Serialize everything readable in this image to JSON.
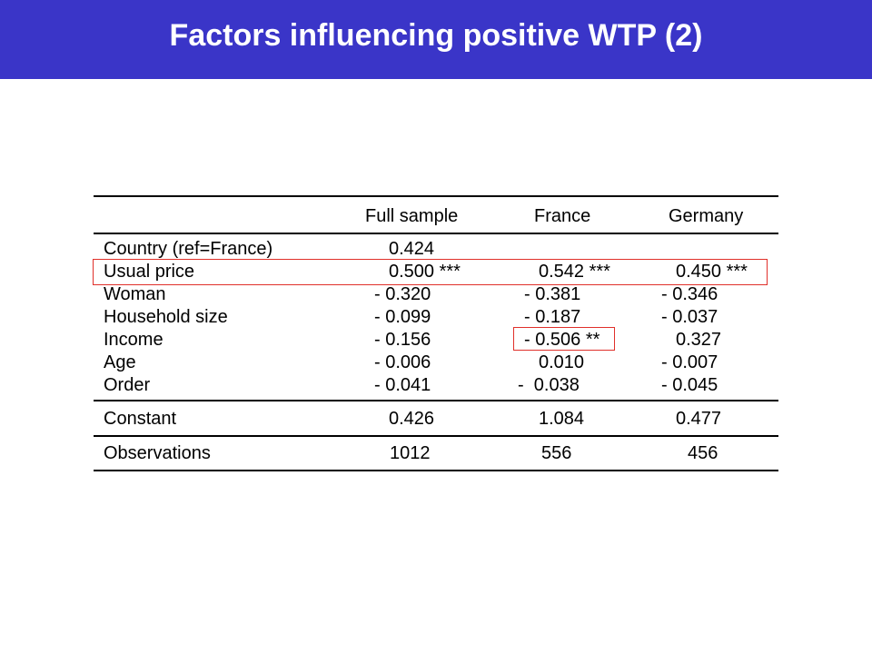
{
  "slide": {
    "title": "Factors influencing positive WTP (2)"
  },
  "table": {
    "columns": [
      "Full sample",
      "France",
      "Germany"
    ],
    "rows": [
      {
        "label": "Country (ref=France)",
        "full": "0.424",
        "france": "",
        "germany": ""
      },
      {
        "label": "Usual price",
        "full": "0.500 ***",
        "france": "0.542 ***",
        "germany": "0.450 ***"
      },
      {
        "label": "Woman",
        "full": "- 0.320",
        "france": "- 0.381",
        "germany": "- 0.346"
      },
      {
        "label": "Household size",
        "full": "- 0.099",
        "france": "- 0.187",
        "germany": "- 0.037"
      },
      {
        "label": "Income",
        "full": "- 0.156",
        "france": "- 0.506 **",
        "germany": "0.327"
      },
      {
        "label": "Age",
        "full": "- 0.006",
        "france": "0.010",
        "germany": "- 0.007"
      },
      {
        "label": "Order",
        "full": "- 0.041",
        "france": "-  0.038",
        "germany": "- 0.045"
      }
    ],
    "constant": {
      "label": "Constant",
      "full": "0.426",
      "france": "1.084",
      "germany": "0.477"
    },
    "observations": {
      "label": "Observations",
      "full": "1012",
      "france": "556",
      "germany": "456"
    }
  },
  "highlight_color": "#e0302a",
  "title_bar_color": "#3a35c8"
}
